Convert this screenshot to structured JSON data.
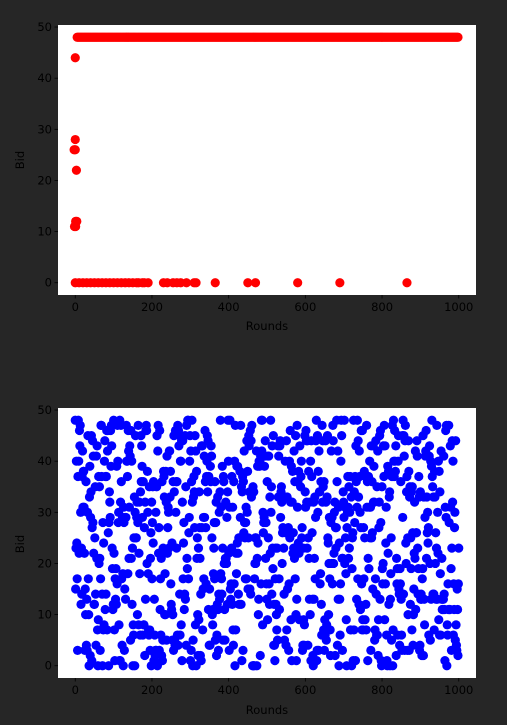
{
  "chart_data": [
    {
      "type": "scatter",
      "xlabel": "Rounds",
      "ylabel": "Bid",
      "xlim": [
        -45,
        1045
      ],
      "ylim": [
        -2.4,
        50.4
      ],
      "x_ticks": [
        0,
        200,
        400,
        600,
        800,
        1000
      ],
      "y_ticks": [
        0,
        10,
        20,
        30,
        40,
        50
      ],
      "marker_color": "#ff0000",
      "series": [
        {
          "points": [
            [
              0,
              44
            ],
            [
              0,
              28
            ],
            [
              -3,
              26
            ],
            [
              0,
              26
            ],
            [
              3,
              22
            ],
            [
              -2,
              11
            ],
            [
              1,
              11
            ],
            [
              4,
              12
            ],
            [
              1,
              12
            ],
            [
              0,
              0
            ],
            [
              10,
              0
            ],
            [
              20,
              0
            ],
            [
              30,
              0
            ],
            [
              40,
              0
            ],
            [
              50,
              0
            ],
            [
              60,
              0
            ],
            [
              70,
              0
            ],
            [
              80,
              0
            ],
            [
              90,
              0
            ],
            [
              100,
              0
            ],
            [
              110,
              0
            ],
            [
              120,
              0
            ],
            [
              130,
              0
            ],
            [
              140,
              0
            ],
            [
              150,
              0
            ],
            [
              160,
              0
            ],
            [
              165,
              0
            ],
            [
              175,
              0
            ],
            [
              180,
              0
            ],
            [
              190,
              0
            ],
            [
              230,
              0
            ],
            [
              240,
              0
            ],
            [
              255,
              0
            ],
            [
              265,
              0
            ],
            [
              275,
              0
            ],
            [
              290,
              0
            ],
            [
              310,
              0
            ],
            [
              315,
              0
            ],
            [
              365,
              0
            ],
            [
              450,
              0
            ],
            [
              470,
              0
            ],
            [
              580,
              0
            ],
            [
              690,
              0
            ],
            [
              865,
              0
            ]
          ],
          "band": {
            "x_from": 5,
            "x_to": 1000,
            "step": 3,
            "y": 48
          }
        }
      ]
    },
    {
      "type": "scatter",
      "xlabel": "Rounds",
      "ylabel": "Bid",
      "xlim": [
        -45,
        1045
      ],
      "ylim": [
        -2.4,
        50.4
      ],
      "x_ticks": [
        0,
        200,
        400,
        600,
        800,
        1000
      ],
      "y_ticks": [
        0,
        10,
        20,
        30,
        40,
        50
      ],
      "marker_color": "#0000ff",
      "series": [
        {
          "random": {
            "x_from": 0,
            "x_to": 1000,
            "count": 1000,
            "y_min": 0,
            "y_max": 48,
            "seed": 12345
          }
        }
      ]
    }
  ]
}
